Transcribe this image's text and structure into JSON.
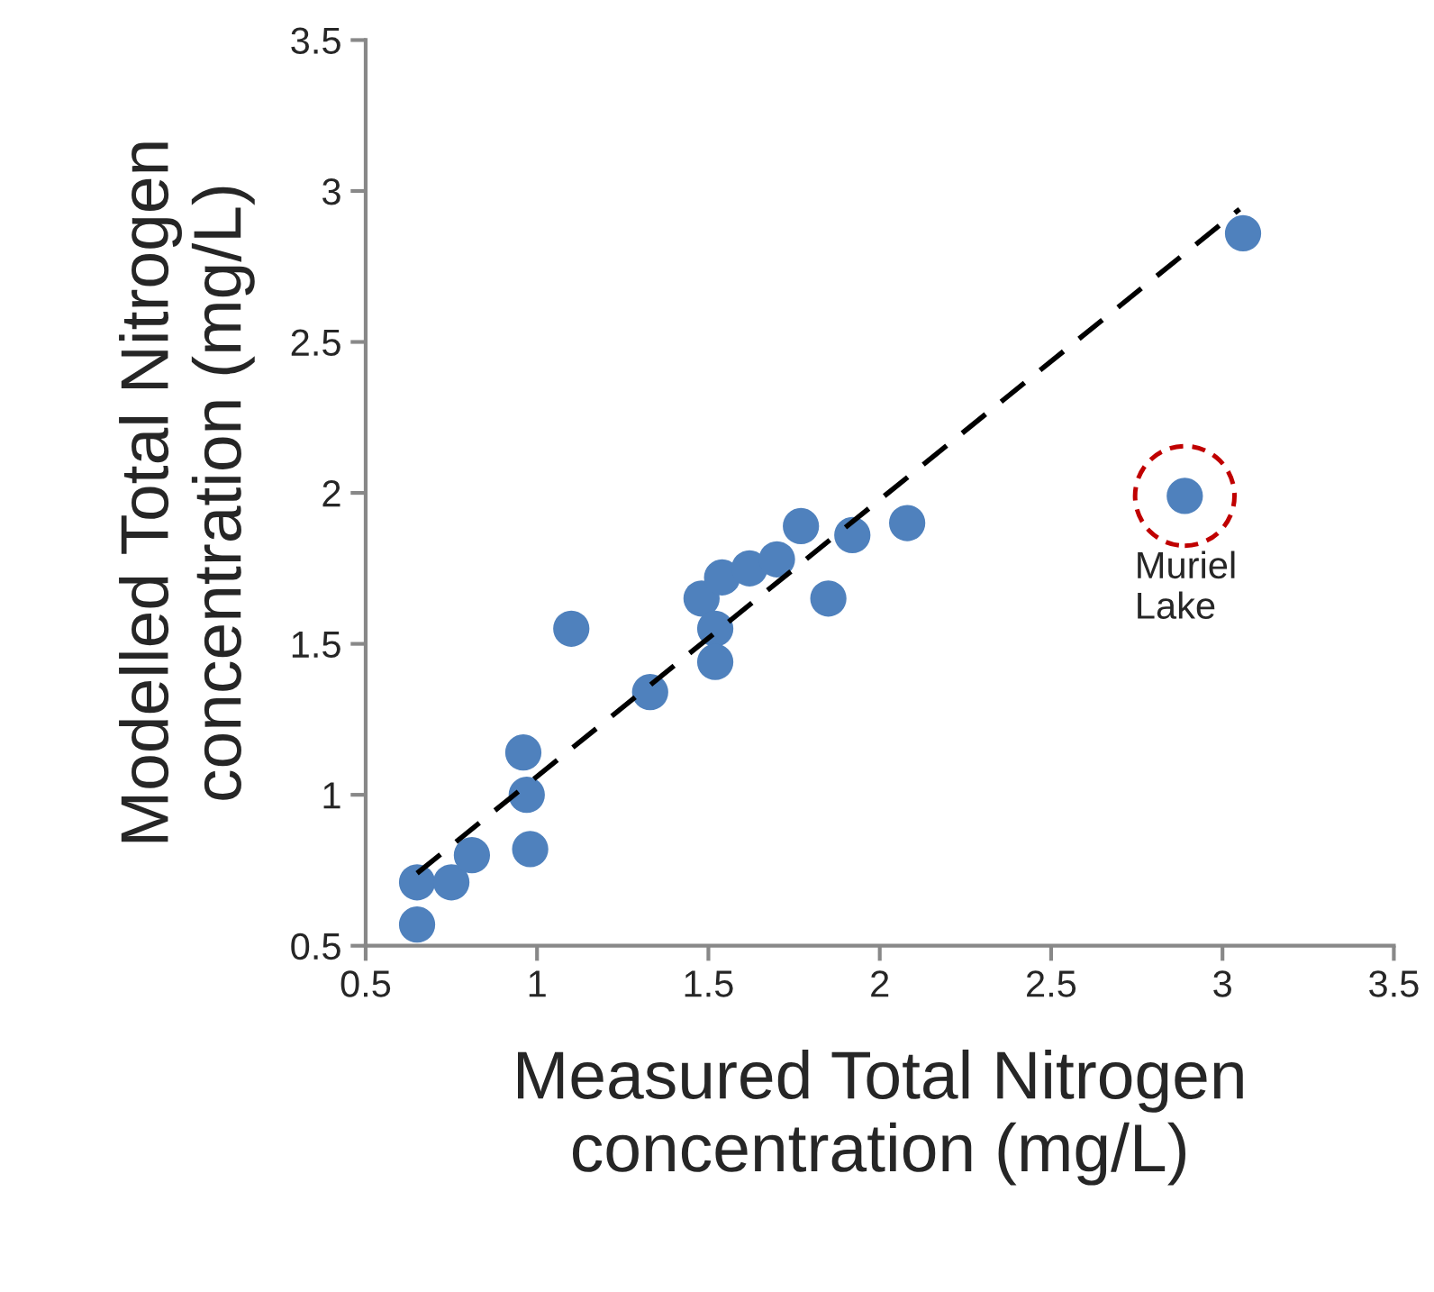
{
  "chart_data": {
    "type": "scatter",
    "xlabel": "Measured Total Nitrogen\nconcentration (mg/L)",
    "ylabel": "Modelled Total Nitrogen\nconcentration (mg/L)",
    "series": [
      {
        "color": "#4f81bd",
        "marker": "circle",
        "x": [
          0.65,
          0.65,
          0.75,
          0.81,
          0.96,
          0.97,
          0.98,
          1.1,
          1.33,
          1.48,
          1.54,
          1.52,
          1.52,
          1.62,
          1.7,
          1.77,
          1.85,
          1.92,
          2.08,
          3.06,
          2.89
        ],
        "values": [
          0.57,
          0.71,
          0.71,
          0.8,
          1.14,
          1.0,
          0.82,
          1.55,
          1.34,
          1.65,
          1.72,
          1.55,
          1.44,
          1.75,
          1.78,
          1.89,
          1.65,
          1.86,
          1.9,
          2.86,
          1.99
        ]
      },
      {
        "type": "line",
        "color": "#000000",
        "line_style": "dashed",
        "marker": "none",
        "x": [
          0.65,
          3.05
        ],
        "values": [
          0.74,
          2.94
        ]
      }
    ],
    "annotations": [
      {
        "text": "Muriel\nLake",
        "x": 2.89,
        "y": 1.99
      }
    ],
    "xlim": [
      0.5,
      3.5
    ],
    "ylim": [
      0.5,
      3.5
    ],
    "xticks": [
      0.5,
      1,
      1.5,
      2,
      2.5,
      3,
      3.5
    ],
    "yticks": [
      0.5,
      1,
      1.5,
      2,
      2.5,
      3,
      3.5
    ],
    "grid": false
  }
}
